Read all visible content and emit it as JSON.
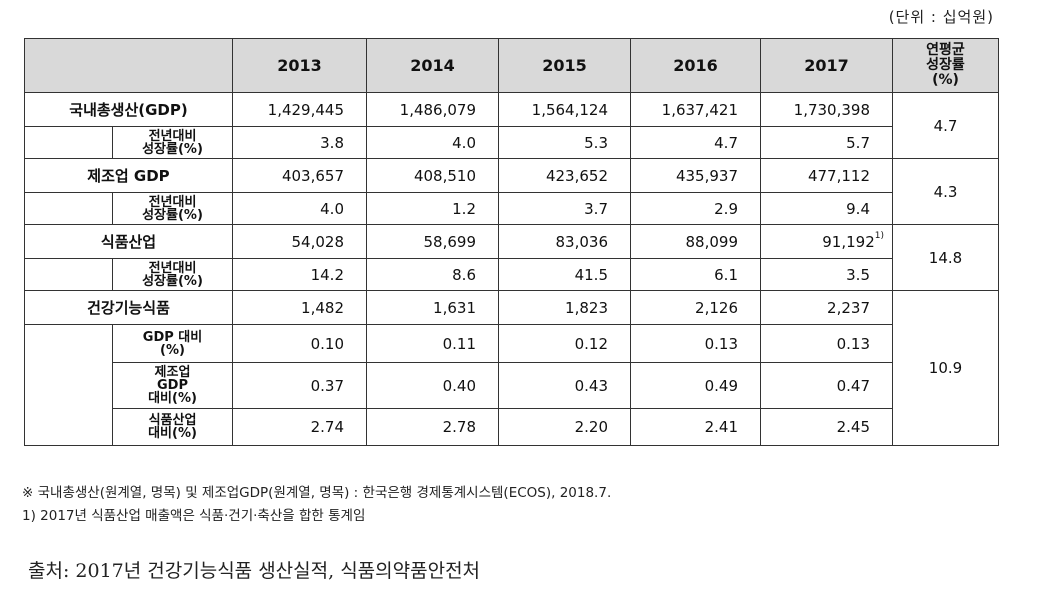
{
  "unit_label": "(단위 : 십억원)",
  "table": {
    "years": [
      "2013",
      "2014",
      "2015",
      "2016",
      "2017"
    ],
    "avg_header": [
      "연평균",
      "성장률",
      "(%)"
    ],
    "rows": {
      "gdp": {
        "label": "국내총생산(GDP)",
        "values": [
          "1,429,445",
          "1,486,079",
          "1,564,124",
          "1,637,421",
          "1,730,398"
        ]
      },
      "gdp_growth": {
        "label": [
          "전년대비",
          "성장률(%)"
        ],
        "values": [
          "3.8",
          "4.0",
          "5.3",
          "4.7",
          "5.7"
        ]
      },
      "gdp_avg": "4.7",
      "mfg": {
        "label": "제조업 GDP",
        "values": [
          "403,657",
          "408,510",
          "423,652",
          "435,937",
          "477,112"
        ]
      },
      "mfg_growth": {
        "label": [
          "전년대비",
          "성장률(%)"
        ],
        "values": [
          "4.0",
          "1.2",
          "3.7",
          "2.9",
          "9.4"
        ]
      },
      "mfg_avg": "4.3",
      "food": {
        "label": "식품산업",
        "values": [
          "54,028",
          "58,699",
          "83,036",
          "88,099",
          "91,192"
        ],
        "footnote_mark": "1)"
      },
      "food_growth": {
        "label": [
          "전년대비",
          "성장률(%)"
        ],
        "values": [
          "14.2",
          "8.6",
          "41.5",
          "6.1",
          "3.5"
        ]
      },
      "food_avg": "14.8",
      "health": {
        "label": "건강기능식품",
        "values": [
          "1,482",
          "1,631",
          "1,823",
          "2,126",
          "2,237"
        ]
      },
      "health_gdp": {
        "label": [
          "GDP 대비",
          "(%)"
        ],
        "values": [
          "0.10",
          "0.11",
          "0.12",
          "0.13",
          "0.13"
        ]
      },
      "health_mfg": {
        "label": [
          "제조업",
          "GDP",
          "대비(%)"
        ],
        "values": [
          "0.37",
          "0.40",
          "0.43",
          "0.49",
          "0.47"
        ]
      },
      "health_food": {
        "label": [
          "식품산업",
          "대비(%)"
        ],
        "values": [
          "2.74",
          "2.78",
          "2.20",
          "2.41",
          "2.45"
        ]
      },
      "health_avg": "10.9"
    }
  },
  "notes": [
    "※ 국내총생산(원계열, 명목) 및 제조업GDP(원계열, 명목) : 한국은행 경제통계시스템(ECOS), 2018.7.",
    "1) 2017년 식품산업 매출액은 식품·건기·축산을 합한 통계임"
  ],
  "source": "출처: 2017년 건강기능식품 생산실적, 식품의약품안전처"
}
